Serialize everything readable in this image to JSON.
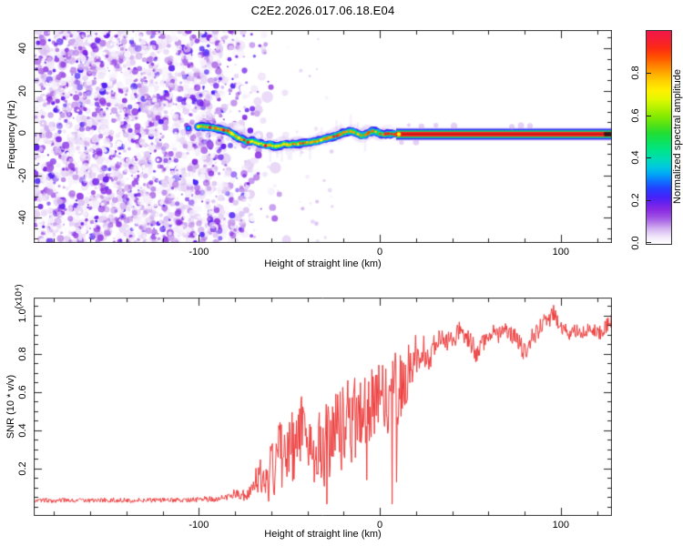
{
  "title": "C2E2.2026.017.06.18.E04",
  "chart_data": [
    {
      "type": "heatmap",
      "description": "Radio-occultation spectrogram: purple noise speckle at low heights, wavy Doppler signal track near 0 Hz, continuous narrow carrier stripe at positive heights",
      "xlabel": "Height of straight line (km)",
      "ylabel": "Frequency (Hz)",
      "xlim": [
        -191.3,
        128.3
      ],
      "ylim": [
        -52.0,
        48.6
      ],
      "x_minor_step": 20,
      "y_minor_step": 5,
      "x_major_ticks": [
        -100,
        0,
        100
      ],
      "y_major_ticks": [
        -40,
        -20,
        0,
        20,
        40
      ],
      "x_tick_labels": [
        {
          "v": -100,
          "t": "-100"
        },
        {
          "v": 0,
          "t": "0"
        },
        {
          "v": 100,
          "t": "100"
        }
      ],
      "y_tick_labels": [
        {
          "v": -40,
          "t": "-40"
        },
        {
          "v": -20,
          "t": "-20"
        },
        {
          "v": 0,
          "t": "0"
        },
        {
          "v": 20,
          "t": "20"
        },
        {
          "v": 40,
          "t": "40"
        }
      ],
      "colorbar": {
        "label": "Normalized spectral amplitude",
        "range": [
          0,
          1
        ],
        "ticks": [
          {
            "v": 0.0,
            "t": "0.0"
          },
          {
            "v": 0.2,
            "t": "0.2"
          },
          {
            "v": 0.4,
            "t": "0.4"
          },
          {
            "v": 0.6,
            "t": "0.6"
          },
          {
            "v": 0.8,
            "t": "0.8"
          }
        ],
        "colormap": [
          [
            0.0,
            "#ffffff"
          ],
          [
            0.03,
            "#f3eafb"
          ],
          [
            0.07,
            "#d4b4f0"
          ],
          [
            0.1,
            "#b57ae8"
          ],
          [
            0.13,
            "#9a4ae4"
          ],
          [
            0.16,
            "#8a2be2"
          ],
          [
            0.19,
            "#6a22ee"
          ],
          [
            0.22,
            "#4422f8"
          ],
          [
            0.26,
            "#2440ff"
          ],
          [
            0.3,
            "#0b7bff"
          ],
          [
            0.33,
            "#00aaf4"
          ],
          [
            0.36,
            "#00c8e0"
          ],
          [
            0.4,
            "#00dcb4"
          ],
          [
            0.44,
            "#00e488"
          ],
          [
            0.48,
            "#0ce25c"
          ],
          [
            0.52,
            "#22dd33"
          ],
          [
            0.56,
            "#55e215"
          ],
          [
            0.6,
            "#86ea00"
          ],
          [
            0.64,
            "#b5f200"
          ],
          [
            0.68,
            "#e3f800"
          ],
          [
            0.72,
            "#fff000"
          ],
          [
            0.76,
            "#ffd400"
          ],
          [
            0.8,
            "#ffab00"
          ],
          [
            0.84,
            "#ff7d00"
          ],
          [
            0.88,
            "#ff4e00"
          ],
          [
            0.92,
            "#fb2a14"
          ],
          [
            0.96,
            "#f51e34"
          ],
          [
            1.0,
            "#ee1848"
          ]
        ]
      },
      "noise_region": {
        "full_until": -94,
        "sparse_until": -46,
        "max_amplitude": 0.22
      },
      "signal_track": [
        [
          -105.8,
          2.2,
          0.35
        ],
        [
          -100.3,
          3.0,
          0.5
        ],
        [
          -97.0,
          3.0,
          0.75
        ],
        [
          -94.0,
          2.6,
          0.9
        ],
        [
          -90.7,
          2.2,
          0.7
        ],
        [
          -87.7,
          1.7,
          0.8
        ],
        [
          -84.1,
          0.9,
          0.9
        ],
        [
          -81.6,
          -0.4,
          0.6
        ],
        [
          -79.6,
          -1.7,
          0.65
        ],
        [
          -77.6,
          -2.6,
          0.5
        ],
        [
          -75.0,
          -3.4,
          0.8
        ],
        [
          -73.0,
          -4.3,
          0.9
        ],
        [
          -70.5,
          -3.9,
          0.6
        ],
        [
          -68.0,
          -4.7,
          0.65
        ],
        [
          -65.5,
          -5.2,
          0.55
        ],
        [
          -63.0,
          -6.0,
          0.85
        ],
        [
          -60.5,
          -5.6,
          0.6
        ],
        [
          -57.9,
          -6.5,
          0.55
        ],
        [
          -55.4,
          -6.0,
          0.5
        ],
        [
          -52.9,
          -5.2,
          0.6
        ],
        [
          -50.4,
          -5.6,
          0.7
        ],
        [
          -47.9,
          -5.2,
          0.85
        ],
        [
          -45.3,
          -5.2,
          0.6
        ],
        [
          -42.3,
          -4.7,
          0.8
        ],
        [
          -39.8,
          -4.7,
          0.6
        ],
        [
          -37.3,
          -4.3,
          0.65
        ],
        [
          -34.8,
          -3.9,
          0.8
        ],
        [
          -32.2,
          -3.4,
          0.6
        ],
        [
          -29.7,
          -2.6,
          0.65
        ],
        [
          -27.7,
          -2.2,
          0.7
        ],
        [
          -25.2,
          -1.7,
          0.85
        ],
        [
          -22.7,
          -0.9,
          0.9
        ],
        [
          -20.2,
          0.0,
          0.8
        ],
        [
          -18.1,
          0.4,
          0.85
        ],
        [
          -16.1,
          0.9,
          0.8
        ],
        [
          -14.1,
          0.4,
          0.7
        ],
        [
          -12.1,
          -0.4,
          0.75
        ],
        [
          -10.1,
          -1.3,
          0.7
        ],
        [
          -8.1,
          -0.9,
          0.8
        ],
        [
          -6.0,
          0.0,
          0.85
        ],
        [
          -4.0,
          0.9,
          0.7
        ],
        [
          -2.0,
          0.4,
          0.8
        ],
        [
          0.0,
          -0.4,
          0.85
        ],
        [
          2.0,
          -0.9,
          0.8
        ],
        [
          4.5,
          -0.4,
          0.85
        ],
        [
          6.5,
          -0.4,
          0.9
        ],
        [
          9.0,
          -0.6,
          0.95
        ]
      ],
      "stripe": {
        "x_start": 9,
        "x_end": 128.3,
        "freq": -0.6,
        "dark_from": 124.0,
        "bumps_above": [
          16,
          23,
          31,
          41,
          73,
          78,
          83
        ],
        "bumps_below": [
          12,
          20
        ]
      }
    },
    {
      "type": "line",
      "xlabel": "Height of straight line (km)",
      "ylabel": "SNR (10 * v/v)",
      "scale_note": "(x10⁴)",
      "xlim": [
        -191.3,
        128.3
      ],
      "ylim": [
        -0.05,
        1.095
      ],
      "x_minor_step": 20,
      "y_minor_step": 0.05,
      "x_major_ticks": [
        -100,
        0,
        100
      ],
      "y_major_ticks": [
        0.2,
        0.4,
        0.6,
        0.8,
        1.0
      ],
      "x_tick_labels": [
        {
          "v": -100,
          "t": "-100"
        },
        {
          "v": 0,
          "t": "0"
        },
        {
          "v": 100,
          "t": "100"
        }
      ],
      "y_tick_labels": [
        {
          "v": 0.2,
          "t": "0.2"
        },
        {
          "v": 0.4,
          "t": "0.4"
        },
        {
          "v": 0.6,
          "t": "0.6"
        },
        {
          "v": 0.8,
          "t": "0.8"
        },
        {
          "v": 1.0,
          "t": "1.0"
        }
      ],
      "series": [
        {
          "name": "SNR",
          "color": "#ee3b3b",
          "anchors": [
            [
              -191,
              0.032,
              0.012
            ],
            [
              -170,
              0.031,
              0.012
            ],
            [
              -150,
              0.033,
              0.013
            ],
            [
              -130,
              0.032,
              0.012
            ],
            [
              -112,
              0.034,
              0.013
            ],
            [
              -100,
              0.036,
              0.014
            ],
            [
              -92,
              0.04,
              0.016
            ],
            [
              -85,
              0.047,
              0.02
            ],
            [
              -80,
              0.07,
              0.028
            ],
            [
              -77,
              0.058,
              0.026
            ],
            [
              -73,
              0.06,
              0.032
            ],
            [
              -70,
              0.09,
              0.05
            ],
            [
              -67,
              0.17,
              0.1
            ],
            [
              -64,
              0.12,
              0.09
            ],
            [
              -61,
              0.25,
              0.15
            ],
            [
              -58,
              0.17,
              0.13
            ],
            [
              -55,
              0.3,
              0.18
            ],
            [
              -52,
              0.2,
              0.15
            ],
            [
              -49,
              0.32,
              0.2
            ],
            [
              -46,
              0.26,
              0.2
            ],
            [
              -43,
              0.44,
              0.22
            ],
            [
              -40,
              0.3,
              0.2
            ],
            [
              -37,
              0.22,
              0.17
            ],
            [
              -34,
              0.4,
              0.25
            ],
            [
              -31,
              0.33,
              0.26
            ],
            [
              -28,
              0.36,
              0.22
            ],
            [
              -25,
              0.44,
              0.2
            ],
            [
              -22,
              0.38,
              0.22
            ],
            [
              -19,
              0.47,
              0.2
            ],
            [
              -16,
              0.44,
              0.22
            ],
            [
              -13,
              0.5,
              0.24
            ],
            [
              -10,
              0.46,
              0.22
            ],
            [
              -7,
              0.54,
              0.19
            ],
            [
              -4,
              0.52,
              0.2
            ],
            [
              -1,
              0.57,
              0.2
            ],
            [
              2,
              0.6,
              0.2
            ],
            [
              5,
              0.56,
              0.19
            ],
            [
              8,
              0.6,
              0.22
            ],
            [
              11,
              0.62,
              0.2
            ],
            [
              14,
              0.66,
              0.17
            ],
            [
              17,
              0.73,
              0.13
            ],
            [
              20,
              0.8,
              0.11
            ],
            [
              23,
              0.83,
              0.09
            ],
            [
              26,
              0.79,
              0.09
            ],
            [
              29,
              0.81,
              0.08
            ],
            [
              32,
              0.87,
              0.06
            ],
            [
              35,
              0.9,
              0.05
            ],
            [
              38,
              0.86,
              0.06
            ],
            [
              41,
              0.88,
              0.05
            ],
            [
              44,
              0.92,
              0.05
            ],
            [
              47,
              0.9,
              0.05
            ],
            [
              50,
              0.87,
              0.06
            ],
            [
              53,
              0.81,
              0.06
            ],
            [
              56,
              0.84,
              0.05
            ],
            [
              59,
              0.89,
              0.05
            ],
            [
              62,
              0.92,
              0.04
            ],
            [
              65,
              0.9,
              0.05
            ],
            [
              69,
              0.92,
              0.04
            ],
            [
              73,
              0.9,
              0.05
            ],
            [
              77,
              0.85,
              0.06
            ],
            [
              80,
              0.81,
              0.05
            ],
            [
              83,
              0.87,
              0.05
            ],
            [
              87,
              0.92,
              0.05
            ],
            [
              91,
              0.96,
              0.06
            ],
            [
              94,
              1.0,
              0.06
            ],
            [
              96,
              1.02,
              0.05
            ],
            [
              98,
              0.97,
              0.05
            ],
            [
              101,
              0.94,
              0.04
            ],
            [
              105,
              0.91,
              0.04
            ],
            [
              109,
              0.93,
              0.04
            ],
            [
              113,
              0.92,
              0.04
            ],
            [
              117,
              0.94,
              0.04
            ],
            [
              120,
              0.9,
              0.04
            ],
            [
              124,
              0.93,
              0.04
            ],
            [
              128,
              0.97,
              0.04
            ]
          ]
        }
      ]
    }
  ]
}
